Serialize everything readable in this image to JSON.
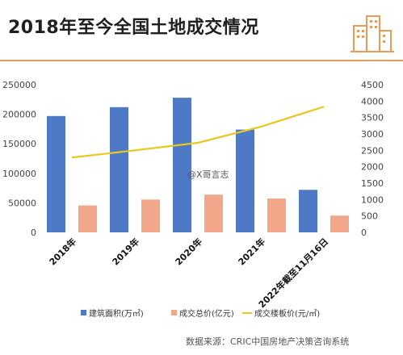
{
  "title": "2018年至今全国土地成交情况",
  "watermark": "@X哥言志",
  "source": "数据来源：CRIC中国房地产决策咨询系统",
  "colors": {
    "bar_area": "#4e79c7",
    "bar_total": "#f2a68a",
    "line_price": "#e8c81c",
    "accent": "#e89a56"
  },
  "chart_data": {
    "type": "bar",
    "categories": [
      "2018年",
      "2019年",
      "2020年",
      "2021年",
      "2022年截至11月16日"
    ],
    "series": [
      {
        "name": "建筑面积(万㎡)",
        "type": "bar",
        "axis": "left",
        "values": [
          197000,
          212000,
          228000,
          174000,
          72000
        ]
      },
      {
        "name": "成交总价(亿元)",
        "type": "bar",
        "axis": "right",
        "values": [
          820,
          1000,
          1150,
          1030,
          510
        ]
      },
      {
        "name": "成交楼板价(元/㎡)",
        "type": "line",
        "axis": "right",
        "values": [
          2280,
          2500,
          2730,
          3220,
          3830
        ]
      }
    ],
    "y_left": {
      "min": 0,
      "max": 250000,
      "ticks": [
        0,
        50000,
        100000,
        150000,
        200000,
        250000
      ]
    },
    "y_right": {
      "min": 0,
      "max": 4500,
      "ticks": [
        0,
        500,
        1000,
        1500,
        2000,
        2500,
        3000,
        3500,
        4000,
        4500
      ]
    },
    "legend_position": "bottom",
    "grid": false
  }
}
